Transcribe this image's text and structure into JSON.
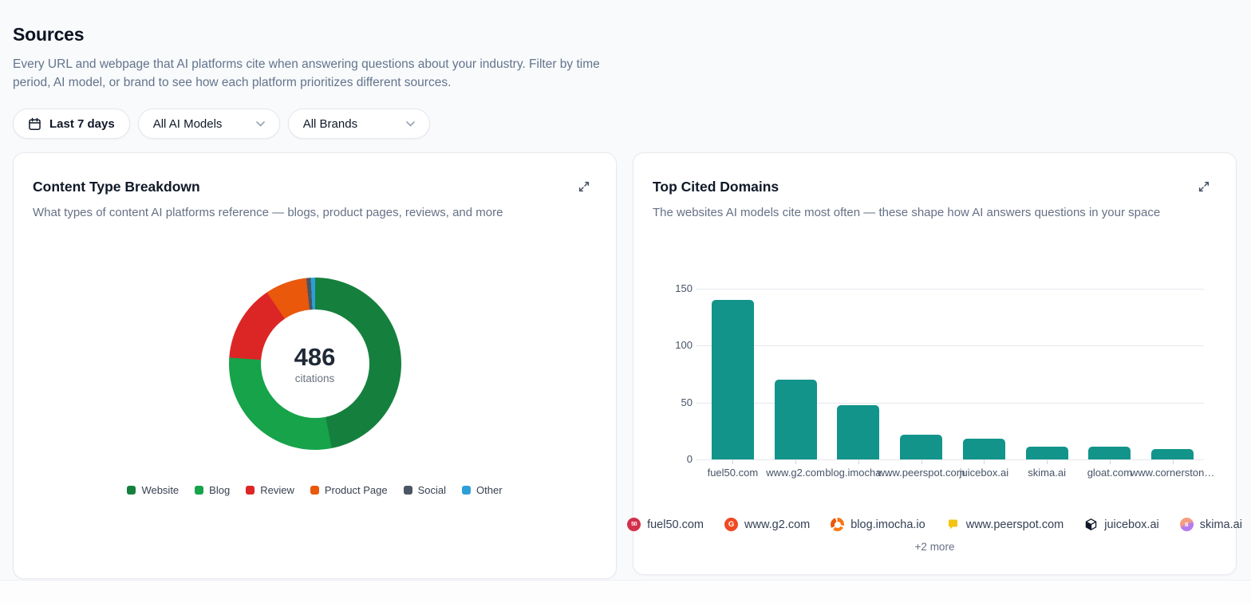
{
  "header": {
    "title": "Sources",
    "description": "Every URL and webpage that AI platforms cite when answering questions about your industry. Filter by time period, AI model, or brand to see how each platform prioritizes different sources."
  },
  "filters": {
    "date_range_label": "Last 7 days",
    "ai_models_value": "All AI Models",
    "brands_value": "All Brands"
  },
  "chart_data": [
    {
      "type": "pie",
      "variant": "donut",
      "title": "Content Type Breakdown",
      "subtitle": "What types of content AI platforms reference — blogs, product pages, reviews, and more",
      "center_value": "486",
      "center_label": "citations",
      "categories": [
        "Website",
        "Blog",
        "Review",
        "Product Page",
        "Social",
        "Other"
      ],
      "values": [
        228,
        142,
        70,
        38,
        4,
        4
      ],
      "colors": [
        "#15803d",
        "#16a34a",
        "#dc2626",
        "#ea580c",
        "#4b5563",
        "#2d9fd8"
      ],
      "legend_position": "bottom"
    },
    {
      "type": "bar",
      "title": "Top Cited Domains",
      "subtitle": "The websites AI models cite most often — these shape how AI answers questions in your space",
      "categories": [
        "fuel50.com",
        "www.g2.com",
        "blog.imocha…",
        "www.peerspot.com",
        "juicebox.ai",
        "skima.ai",
        "gloat.com",
        "www.cornerston…"
      ],
      "values": [
        140,
        70,
        48,
        22,
        18,
        11,
        11,
        9
      ],
      "bar_color": "#12948a",
      "xlabel": "",
      "ylabel": "",
      "ylim": [
        0,
        150
      ],
      "yticks": [
        0,
        50,
        100,
        150
      ],
      "grid": true,
      "legend_position": "none",
      "footer_domains": [
        {
          "label": "fuel50.com",
          "icon": "fuel50-favicon"
        },
        {
          "label": "www.g2.com",
          "icon": "g2-favicon"
        },
        {
          "label": "blog.imocha.io",
          "icon": "imocha-favicon"
        },
        {
          "label": "www.peerspot.com",
          "icon": "peerspot-favicon"
        },
        {
          "label": "juicebox.ai",
          "icon": "juicebox-favicon"
        },
        {
          "label": "skima.ai",
          "icon": "skima-favicon"
        }
      ],
      "more_label": "+2 more"
    }
  ]
}
